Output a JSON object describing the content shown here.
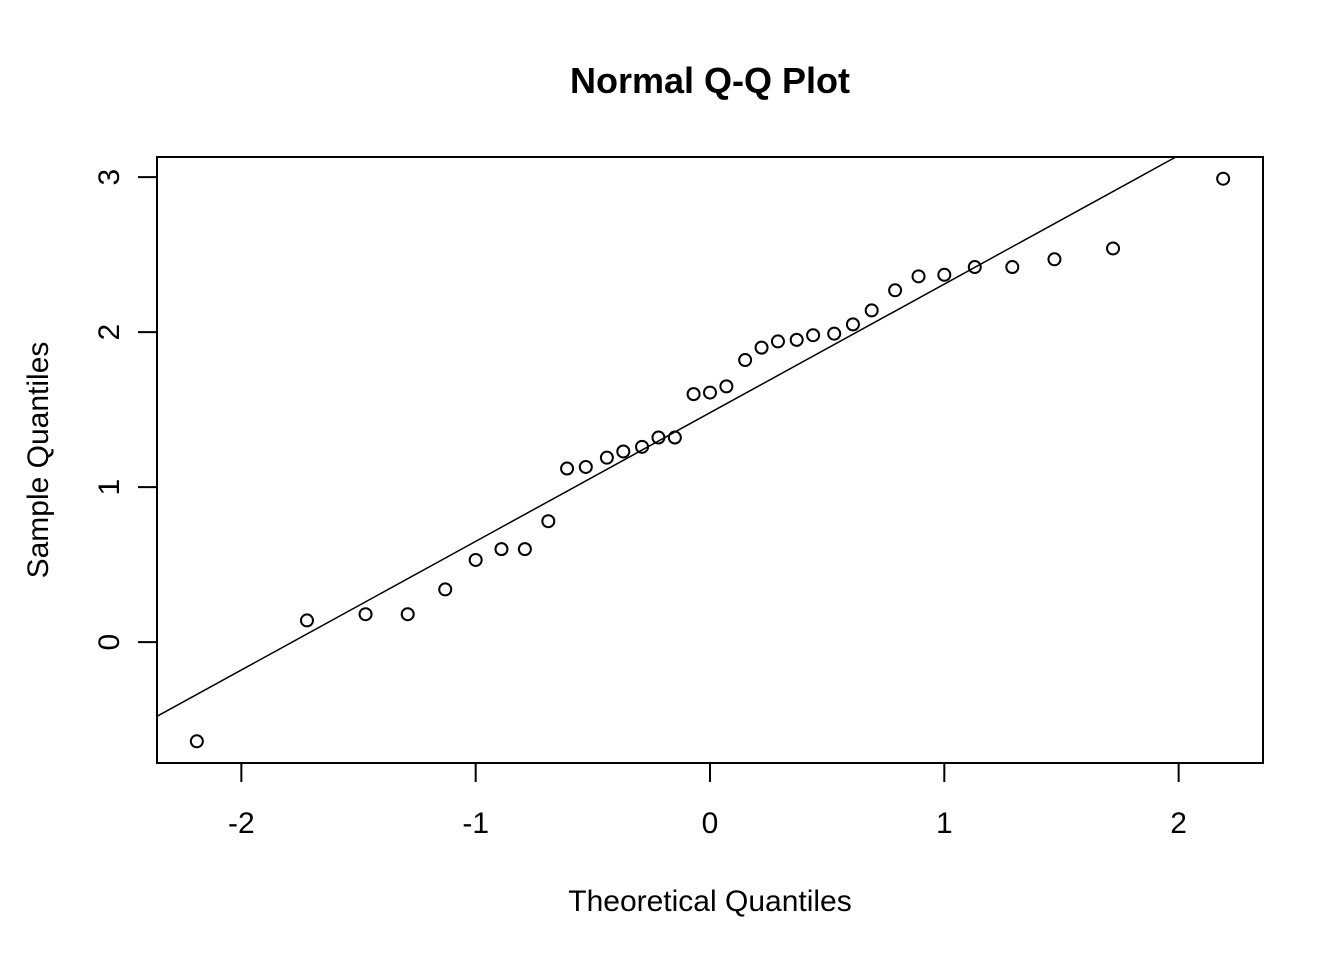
{
  "chart_data": {
    "type": "scatter",
    "title": "Normal Q-Q Plot",
    "xlabel": "Theoretical Quantiles",
    "ylabel": "Sample Quantiles",
    "xlim": [
      -2.36,
      2.36
    ],
    "ylim": [
      -0.78,
      3.13
    ],
    "x_ticks": [
      -2,
      -1,
      0,
      1,
      2
    ],
    "y_ticks": [
      0,
      1,
      2,
      3
    ],
    "x_tick_labels": [
      "-2",
      "-1",
      "0",
      "1",
      "2"
    ],
    "y_tick_labels": [
      "0",
      "1",
      "2",
      "3"
    ],
    "grid": false,
    "legend": "none",
    "points": {
      "x": [
        -2.19,
        -1.72,
        -1.47,
        -1.29,
        -1.13,
        -1.0,
        -0.89,
        -0.79,
        -0.69,
        -0.61,
        -0.53,
        -0.44,
        -0.37,
        -0.29,
        -0.22,
        -0.15,
        -0.07,
        0.0,
        0.07,
        0.15,
        0.22,
        0.29,
        0.37,
        0.44,
        0.53,
        0.61,
        0.69,
        0.79,
        0.89,
        1.0,
        1.13,
        1.29,
        1.47,
        1.72,
        2.19
      ],
      "y": [
        -0.64,
        0.14,
        0.18,
        0.18,
        0.34,
        0.53,
        0.6,
        0.6,
        0.78,
        1.12,
        1.13,
        1.19,
        1.23,
        1.26,
        1.32,
        1.32,
        1.6,
        1.61,
        1.65,
        1.82,
        1.9,
        1.94,
        1.95,
        1.98,
        1.99,
        2.05,
        2.14,
        2.27,
        2.36,
        2.37,
        2.42,
        2.42,
        2.47,
        2.54,
        2.99
      ]
    },
    "reference_line": {
      "intercept": 1.48,
      "slope": 0.83
    }
  }
}
